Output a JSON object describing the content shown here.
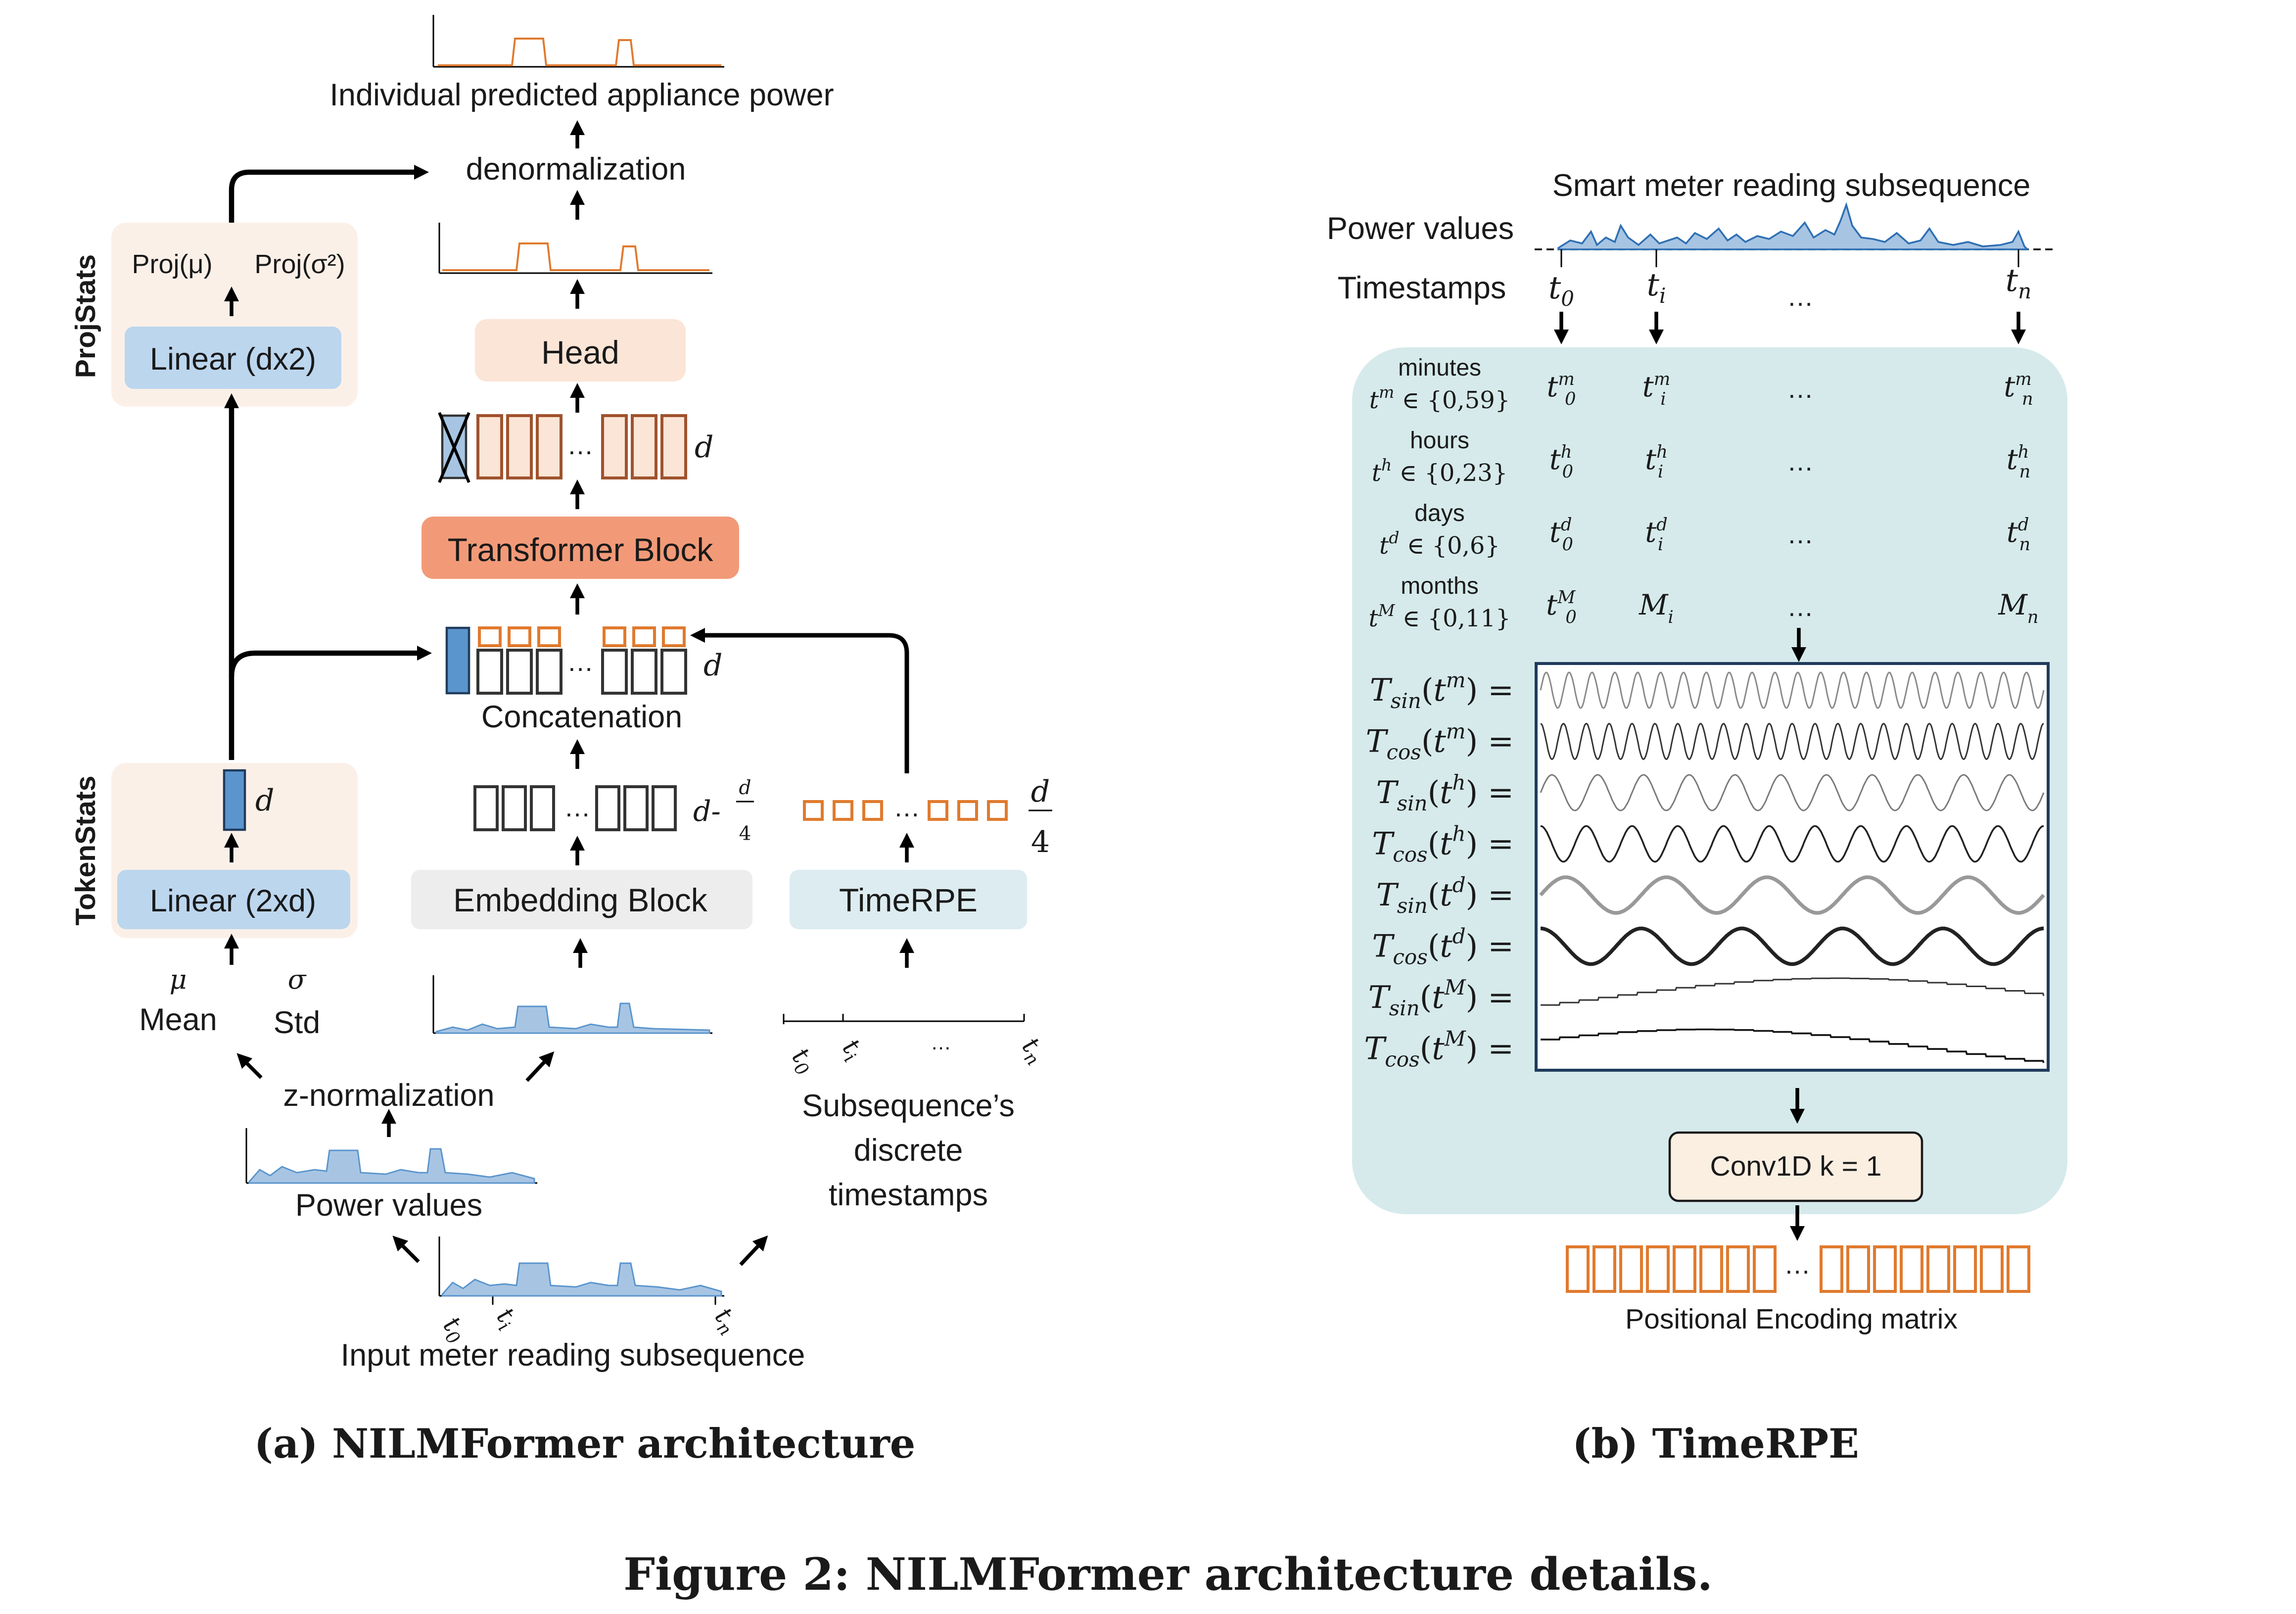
{
  "colors": {
    "accent_orange": "#e07a2e",
    "token_blue": "#5b95cd",
    "linear_blue": "#bcd6ee",
    "peach_bg": "#fbf0e8",
    "transformer_orange": "#f29a78",
    "head_fill": "#fbe5d6",
    "embed_fill": "#ededed",
    "timerpe_fill": "#dcecf0",
    "timerpe_panel": "#d6eaeb",
    "conv_fill": "#fbefe2",
    "wave_dark": "#1a1a1a"
  },
  "icons": [
    "arrow-up-icon",
    "arrow-down-icon",
    "cross-icon"
  ],
  "left": {
    "output_label": "Individual predicted appliance power",
    "denorm": "denormalization",
    "head": "Head",
    "transformer": "Transformer Block",
    "concatenation": "Concatenation",
    "embedding": "Embedding Block",
    "timerpe": "TimeRPE",
    "projstats": "ProjStats",
    "tokenstats": "TokenStats",
    "proj_mu": "Proj(μ)",
    "proj_sigma": "Proj(σ²)",
    "linear_dx2": "Linear (dx2)",
    "linear_2xd": "Linear (2xd)",
    "d": "d",
    "d_minus": "d-",
    "frac_num": "d",
    "frac_den": "4",
    "dots": "…",
    "mu": "μ",
    "mean": "Mean",
    "sigma": "σ",
    "std": "Std",
    "znorm": "z-normalization",
    "power_values": "Power values",
    "input_label": "Input meter reading subsequence",
    "subseq_line1": "Subsequence’s",
    "subseq_line2": "discrete",
    "subseq_line3": "timestamps",
    "t0": "t",
    "t0_sub": "0",
    "ti": "t",
    "ti_sub": "i",
    "tn": "t",
    "tn_sub": "n",
    "caption": "(a) NILMFormer architecture"
  },
  "right": {
    "title": "Smart meter  reading subsequence",
    "power_values": "Power values",
    "timestamps": "Timestamps",
    "rows": [
      {
        "name": "minutes",
        "range": "t^m ∈ {0,59}",
        "c0": "t0^m",
        "ci": "ti^m",
        "cn": "tn^m"
      },
      {
        "name": "hours",
        "range": "t^h ∈ {0,23}",
        "c0": "t0^h",
        "ci": "ti^h",
        "cn": "tn^h"
      },
      {
        "name": "days",
        "range": "t^d ∈ {0,6}",
        "c0": "t0^d",
        "ci": "ti^d",
        "cn": "tn^d"
      },
      {
        "name": "months",
        "range": "t^M ∈ {0,11}",
        "c0": "t0^M",
        "ci": "Mi",
        "cn": "Mn"
      }
    ],
    "waves": [
      {
        "label": "Tsin(t^m) ="
      },
      {
        "label": "Tcos(t^m) ="
      },
      {
        "label": "Tsin(t^h) ="
      },
      {
        "label": "Tcos(t^h) ="
      },
      {
        "label": "Tsin(t^d) ="
      },
      {
        "label": "Tcos(t^d) ="
      },
      {
        "label": "Tsin(t^M) ="
      },
      {
        "label": "Tcos(t^M) ="
      }
    ],
    "conv": "Conv1D k = 1",
    "pe_label": "Positional Encoding matrix",
    "dots": "…",
    "caption": "(b) TimeRPE"
  },
  "figure_caption": "Figure 2: NILMFormer architecture details."
}
